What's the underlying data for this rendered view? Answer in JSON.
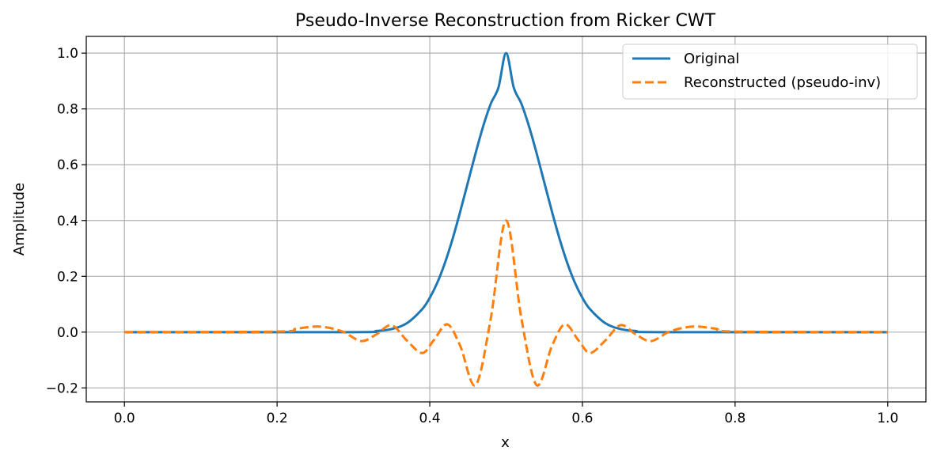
{
  "chart_data": {
    "type": "line",
    "title": "Pseudo-Inverse Reconstruction from Ricker CWT",
    "xlabel": "x",
    "ylabel": "Amplitude",
    "xlim": [
      -0.05,
      1.05
    ],
    "ylim": [
      -0.25,
      1.06
    ],
    "xticks": [
      0.0,
      0.2,
      0.4,
      0.6,
      0.8,
      1.0
    ],
    "xtick_labels": [
      "0.0",
      "0.2",
      "0.4",
      "0.6",
      "0.8",
      "1.0"
    ],
    "yticks": [
      -0.2,
      0.0,
      0.2,
      0.4,
      0.6,
      0.8,
      1.0
    ],
    "ytick_labels": [
      "−0.2",
      "0.0",
      "0.2",
      "0.4",
      "0.6",
      "0.8",
      "1.0"
    ],
    "grid": true,
    "legend_position": "top-right",
    "series": [
      {
        "name": "Original",
        "color": "#1f77b4",
        "style": "solid",
        "x": [
          0.0,
          0.3,
          0.33,
          0.35,
          0.37,
          0.39,
          0.4,
          0.41,
          0.42,
          0.43,
          0.44,
          0.45,
          0.46,
          0.47,
          0.48,
          0.49,
          0.5,
          0.51,
          0.52,
          0.53,
          0.54,
          0.55,
          0.56,
          0.57,
          0.58,
          0.59,
          0.6,
          0.61,
          0.63,
          0.65,
          0.67,
          0.7,
          1.0
        ],
        "y": [
          0.0,
          0.0,
          0.004,
          0.011,
          0.032,
          0.082,
          0.123,
          0.178,
          0.249,
          0.335,
          0.433,
          0.537,
          0.641,
          0.738,
          0.819,
          0.877,
          1.0,
          0.877,
          0.819,
          0.738,
          0.641,
          0.537,
          0.433,
          0.335,
          0.249,
          0.178,
          0.123,
          0.082,
          0.032,
          0.011,
          0.004,
          0.0,
          0.0
        ]
      },
      {
        "name": "Reconstructed (pseudo-inv)",
        "color": "#ff7f0e",
        "style": "dashed",
        "x": [
          0.0,
          0.2,
          0.225,
          0.255,
          0.285,
          0.31,
          0.33,
          0.35,
          0.37,
          0.39,
          0.405,
          0.423,
          0.44,
          0.46,
          0.48,
          0.5,
          0.52,
          0.54,
          0.56,
          0.577,
          0.595,
          0.61,
          0.63,
          0.65,
          0.67,
          0.69,
          0.715,
          0.745,
          0.775,
          0.8,
          1.0
        ],
        "y": [
          0.0,
          0.002,
          0.012,
          0.02,
          0.003,
          -0.032,
          -0.008,
          0.025,
          -0.03,
          -0.075,
          -0.03,
          0.028,
          -0.05,
          -0.19,
          0.05,
          0.4,
          0.05,
          -0.19,
          -0.05,
          0.028,
          -0.03,
          -0.075,
          -0.03,
          0.025,
          -0.008,
          -0.032,
          0.003,
          0.02,
          0.012,
          0.002,
          0.0
        ]
      }
    ]
  }
}
